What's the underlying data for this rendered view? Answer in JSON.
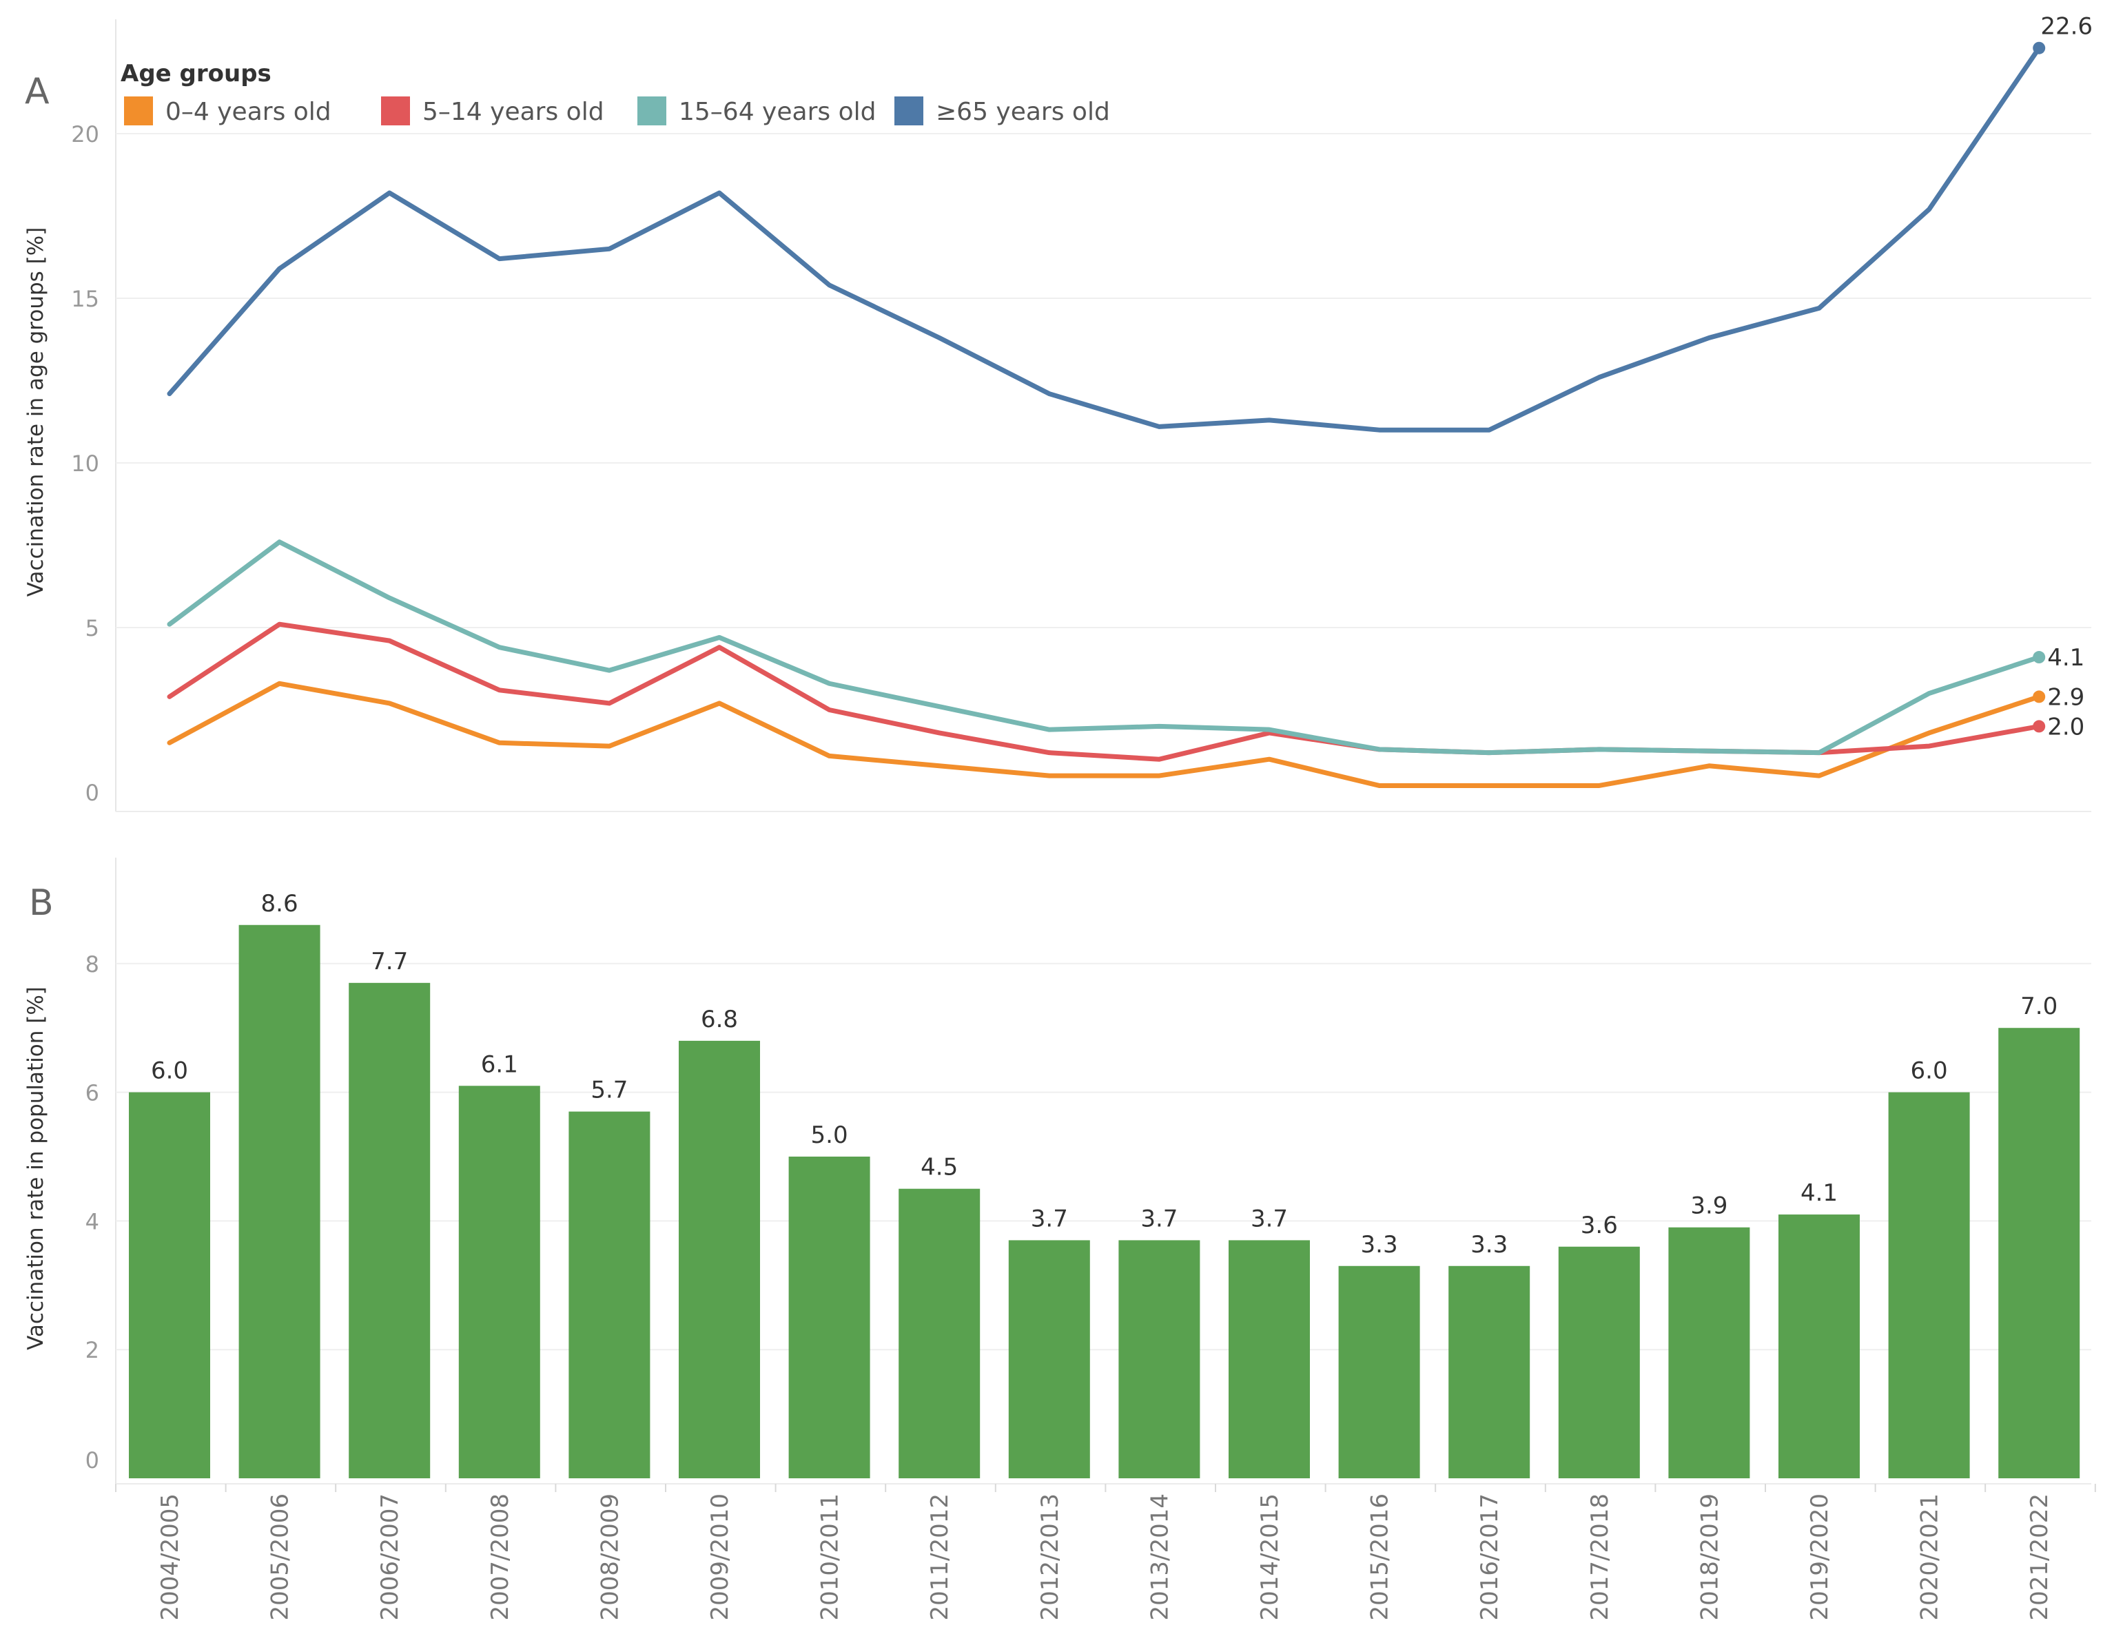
{
  "chart_data": [
    {
      "type": "line",
      "panel_label": "A",
      "ylabel": "Vaccination rate in age groups [%]",
      "ylim": [
        0,
        23.5
      ],
      "yticks": [
        0,
        5,
        10,
        15,
        20
      ],
      "legend_title": "Age groups",
      "legend_position": "top-left",
      "categories": [
        "2004/2005",
        "2005/2006",
        "2006/2007",
        "2007/2008",
        "2008/2009",
        "2009/2010",
        "2010/2011",
        "2011/2012",
        "2012/2013",
        "2013/2014",
        "2014/2015",
        "2015/2016",
        "2016/2017",
        "2017/2018",
        "2018/2019",
        "2019/2020",
        "2020/2021",
        "2021/2022"
      ],
      "series": [
        {
          "name": "0–4 years old",
          "color": "#f28e2b",
          "values": [
            1.5,
            3.3,
            2.7,
            1.5,
            1.4,
            2.7,
            1.1,
            0.8,
            0.5,
            0.5,
            1.0,
            0.2,
            0.2,
            0.2,
            0.8,
            0.5,
            1.8,
            2.9
          ],
          "end_label": "2.9"
        },
        {
          "name": "5–14 years old",
          "color": "#e15759",
          "values": [
            2.9,
            5.1,
            4.6,
            3.1,
            2.7,
            4.4,
            2.5,
            1.8,
            1.2,
            1.0,
            1.8,
            1.3,
            1.2,
            1.3,
            1.25,
            1.2,
            1.4,
            2.0
          ],
          "end_label": "2.0"
        },
        {
          "name": "15–64 years old",
          "color": "#76b7b2",
          "values": [
            5.1,
            7.6,
            5.9,
            4.4,
            3.7,
            4.7,
            3.3,
            2.6,
            1.9,
            2.0,
            1.9,
            1.3,
            1.2,
            1.3,
            1.25,
            1.2,
            3.0,
            4.1
          ],
          "end_label": "4.1"
        },
        {
          "name": "≥65 years old",
          "color": "#4e79a7",
          "values": [
            12.1,
            15.9,
            18.2,
            16.2,
            16.5,
            18.2,
            15.4,
            13.8,
            12.1,
            11.1,
            11.3,
            11.0,
            11.0,
            12.6,
            13.8,
            14.7,
            17.7,
            22.6
          ],
          "end_label": "22.6"
        }
      ]
    },
    {
      "type": "bar",
      "panel_label": "B",
      "ylabel": "Vaccination rate in population [%]",
      "ylim": [
        0,
        9.4
      ],
      "yticks": [
        0,
        2,
        4,
        6,
        8
      ],
      "color": "#59a14f",
      "categories": [
        "2004/2005",
        "2005/2006",
        "2006/2007",
        "2007/2008",
        "2008/2009",
        "2009/2010",
        "2010/2011",
        "2011/2012",
        "2012/2013",
        "2013/2014",
        "2014/2015",
        "2015/2016",
        "2016/2017",
        "2017/2018",
        "2018/2019",
        "2019/2020",
        "2020/2021",
        "2021/2022"
      ],
      "values": [
        6.0,
        8.6,
        7.7,
        6.1,
        5.7,
        6.8,
        5.0,
        4.5,
        3.7,
        3.7,
        3.7,
        3.3,
        3.3,
        3.6,
        3.9,
        4.1,
        6.0,
        7.0
      ],
      "value_labels": [
        "6.0",
        "8.6",
        "7.7",
        "6.1",
        "5.7",
        "6.8",
        "5.0",
        "4.5",
        "3.7",
        "3.7",
        "3.7",
        "3.3",
        "3.3",
        "3.6",
        "3.9",
        "4.1",
        "6.0",
        "7.0"
      ]
    }
  ]
}
